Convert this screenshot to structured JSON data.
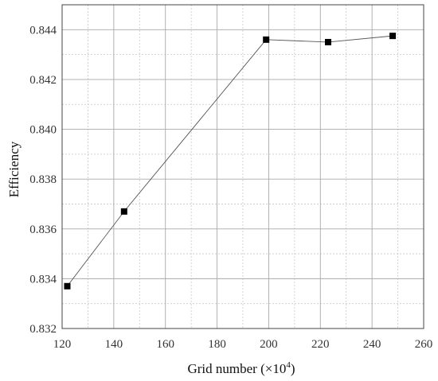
{
  "chart_data": {
    "type": "line",
    "xlabel": "Grid number (×10",
    "xlabel_exponent": "4",
    "xlabel_close": ")",
    "ylabel": "Efficiency",
    "xlim": [
      120,
      260
    ],
    "ylim": [
      0.832,
      0.845
    ],
    "x_ticks": [
      "120",
      "140",
      "160",
      "180",
      "200",
      "220",
      "240",
      "260"
    ],
    "y_ticks": [
      "0.832",
      "0.834",
      "0.836",
      "0.838",
      "0.840",
      "0.842",
      "0.844"
    ],
    "x_major_values": [
      120,
      140,
      160,
      180,
      200,
      220,
      240,
      260
    ],
    "y_major_values": [
      0.832,
      0.834,
      0.836,
      0.838,
      0.84,
      0.842,
      0.844
    ],
    "x_minor_values": [
      130,
      150,
      170,
      190,
      210,
      230,
      250
    ],
    "y_minor_values": [
      0.833,
      0.835,
      0.837,
      0.839,
      0.841,
      0.843
    ],
    "grid": true,
    "marker": "square",
    "color": "#000000",
    "series": [
      {
        "x": [
          122,
          144,
          199,
          223,
          248
        ],
        "y": [
          0.8337,
          0.8367,
          0.8436,
          0.8435,
          0.84375
        ]
      }
    ]
  }
}
